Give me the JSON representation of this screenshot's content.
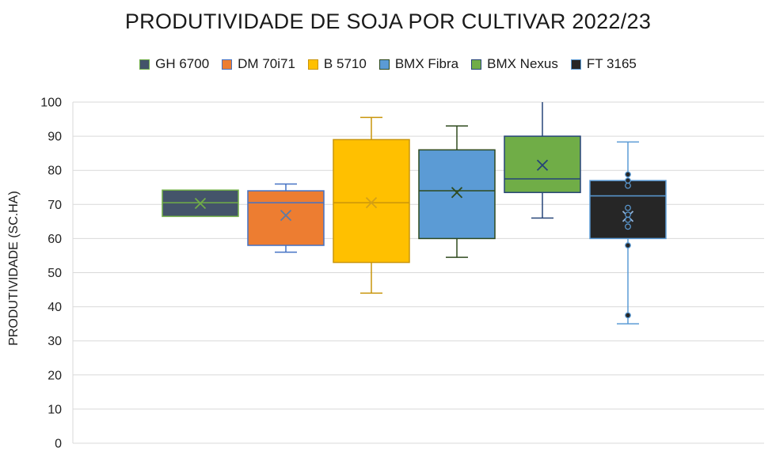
{
  "chart_data": {
    "type": "box",
    "title": "PRODUTIVIDADE DE SOJA POR CULTIVAR 2022/23",
    "xlabel": "",
    "ylabel": "PRODUTIVIDADE (SC.HA)",
    "ylim": [
      0,
      100
    ],
    "yticks": [
      "0",
      "10",
      "20",
      "30",
      "40",
      "50",
      "60",
      "70",
      "80",
      "90",
      "100"
    ],
    "grid": true,
    "legend_position": "top",
    "series": [
      {
        "name": "GH 6700",
        "fill": "#44546a",
        "edge": "#70ad47",
        "mean_color": "#70ad47",
        "min": 66.5,
        "q1": 66.5,
        "median": 70.5,
        "q3": 74.2,
        "max": 74.2,
        "mean": 70.3,
        "outliers": []
      },
      {
        "name": "DM 70i71",
        "fill": "#ed7d31",
        "edge": "#4472c4",
        "mean_color": "#5b7ba8",
        "min": 56,
        "q1": 58,
        "median": 70.5,
        "q3": 74,
        "max": 76,
        "mean": 66.8,
        "outliers": []
      },
      {
        "name": "B 5710",
        "fill": "#ffc000",
        "edge": "#c9950a",
        "mean_color": "#d4a017",
        "min": 44,
        "q1": 53,
        "median": 70.5,
        "q3": 89,
        "max": 95.5,
        "mean": 70.5,
        "outliers": []
      },
      {
        "name": "BMX Fibra",
        "fill": "#5b9bd5",
        "edge": "#2f4a1e",
        "mean_color": "#2f4a1e",
        "min": 54.5,
        "q1": 60,
        "median": 74,
        "q3": 86,
        "max": 93,
        "mean": 73.5,
        "outliers": []
      },
      {
        "name": "BMX Nexus",
        "fill": "#70ad47",
        "edge": "#264478",
        "mean_color": "#264478",
        "min": 66,
        "q1": 73.5,
        "median": 77.5,
        "q3": 90,
        "max": 101,
        "mean": 81.5,
        "outliers": []
      },
      {
        "name": "FT 3165",
        "fill": "#262626",
        "edge": "#5b9bd5",
        "mean_color": "#8fb4dc",
        "min": 35,
        "q1": 60,
        "median": 72.5,
        "q3": 77,
        "max": 88.3,
        "mean": 66.5,
        "outliers": [
          37.5,
          58,
          78.8,
          77,
          75.5,
          69,
          67,
          65.5,
          63.5
        ]
      }
    ]
  }
}
